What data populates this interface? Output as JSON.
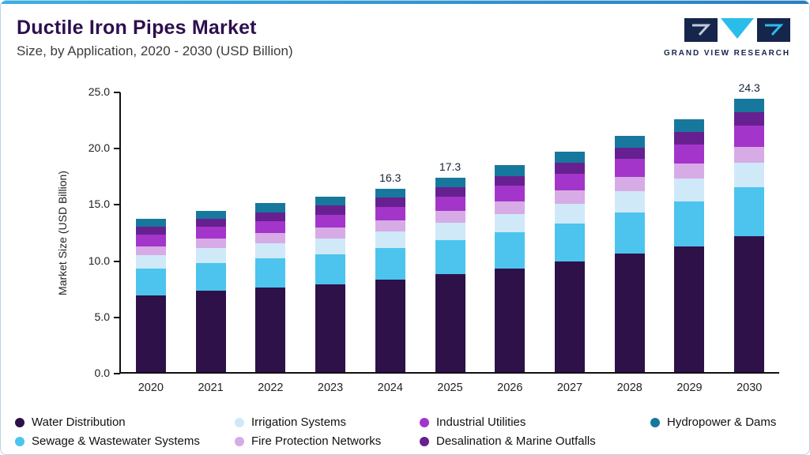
{
  "header": {
    "title": "Ductile Iron Pipes Market",
    "subtitle": "Size, by Application, 2020 - 2030 (USD Billion)"
  },
  "logo": {
    "brand": "GRAND VIEW RESEARCH"
  },
  "chart_data": {
    "type": "bar",
    "stacked": true,
    "title": "Ductile Iron Pipes Market Size, by Application, 2020 - 2030 (USD Billion)",
    "ylabel": "Market Size (USD Billion)",
    "ylim": [
      0,
      25
    ],
    "yticks": [
      "0.0",
      "5.0",
      "10.0",
      "15.0",
      "20.0",
      "25.0"
    ],
    "grid": false,
    "legend_position": "bottom",
    "categories": [
      "2020",
      "2021",
      "2022",
      "2023",
      "2024",
      "2025",
      "2026",
      "2027",
      "2028",
      "2029",
      "2030"
    ],
    "series": [
      {
        "name": "Water Distribution",
        "color": "#2e1148",
        "values": [
          6.8,
          7.2,
          7.5,
          7.8,
          8.2,
          8.7,
          9.2,
          9.8,
          10.5,
          11.2,
          12.1
        ]
      },
      {
        "name": "Sewage & Wastewater Systems",
        "color": "#4cc4ee",
        "values": [
          2.4,
          2.5,
          2.6,
          2.7,
          2.85,
          3.0,
          3.2,
          3.4,
          3.7,
          4.0,
          4.3
        ]
      },
      {
        "name": "Irrigation Systems",
        "color": "#cfe9f8",
        "values": [
          1.2,
          1.3,
          1.35,
          1.4,
          1.45,
          1.55,
          1.65,
          1.75,
          1.9,
          2.0,
          2.2
        ]
      },
      {
        "name": "Fire Protection Networks",
        "color": "#d7abe6",
        "values": [
          0.8,
          0.85,
          0.9,
          0.95,
          1.0,
          1.05,
          1.1,
          1.2,
          1.25,
          1.35,
          1.45
        ]
      },
      {
        "name": "Industrial Utilities",
        "color": "#a435cb",
        "values": [
          1.0,
          1.05,
          1.1,
          1.15,
          1.2,
          1.3,
          1.4,
          1.5,
          1.6,
          1.7,
          1.85
        ]
      },
      {
        "name": "Desalination & Marine Outfalls",
        "color": "#67208f",
        "values": [
          0.7,
          0.7,
          0.75,
          0.8,
          0.8,
          0.85,
          0.9,
          0.95,
          1.0,
          1.1,
          1.2
        ]
      },
      {
        "name": "Hydropower & Dams",
        "color": "#17789d",
        "values": [
          0.7,
          0.7,
          0.8,
          0.8,
          0.8,
          0.85,
          0.95,
          1.0,
          1.05,
          1.15,
          1.2
        ]
      }
    ],
    "bar_labels": {
      "2024": "16.3",
      "2025": "17.3",
      "2030": "24.3"
    },
    "totals": [
      13.6,
      14.3,
      15.0,
      15.6,
      16.3,
      17.3,
      18.4,
      19.6,
      21.0,
      22.5,
      24.3
    ]
  },
  "legend": {
    "items": [
      "Water Distribution",
      "Irrigation Systems",
      "Industrial Utilities",
      "Hydropower & Dams",
      "Sewage & Wastewater Systems",
      "Fire Protection Networks",
      "Desalination & Marine Outfalls"
    ]
  }
}
